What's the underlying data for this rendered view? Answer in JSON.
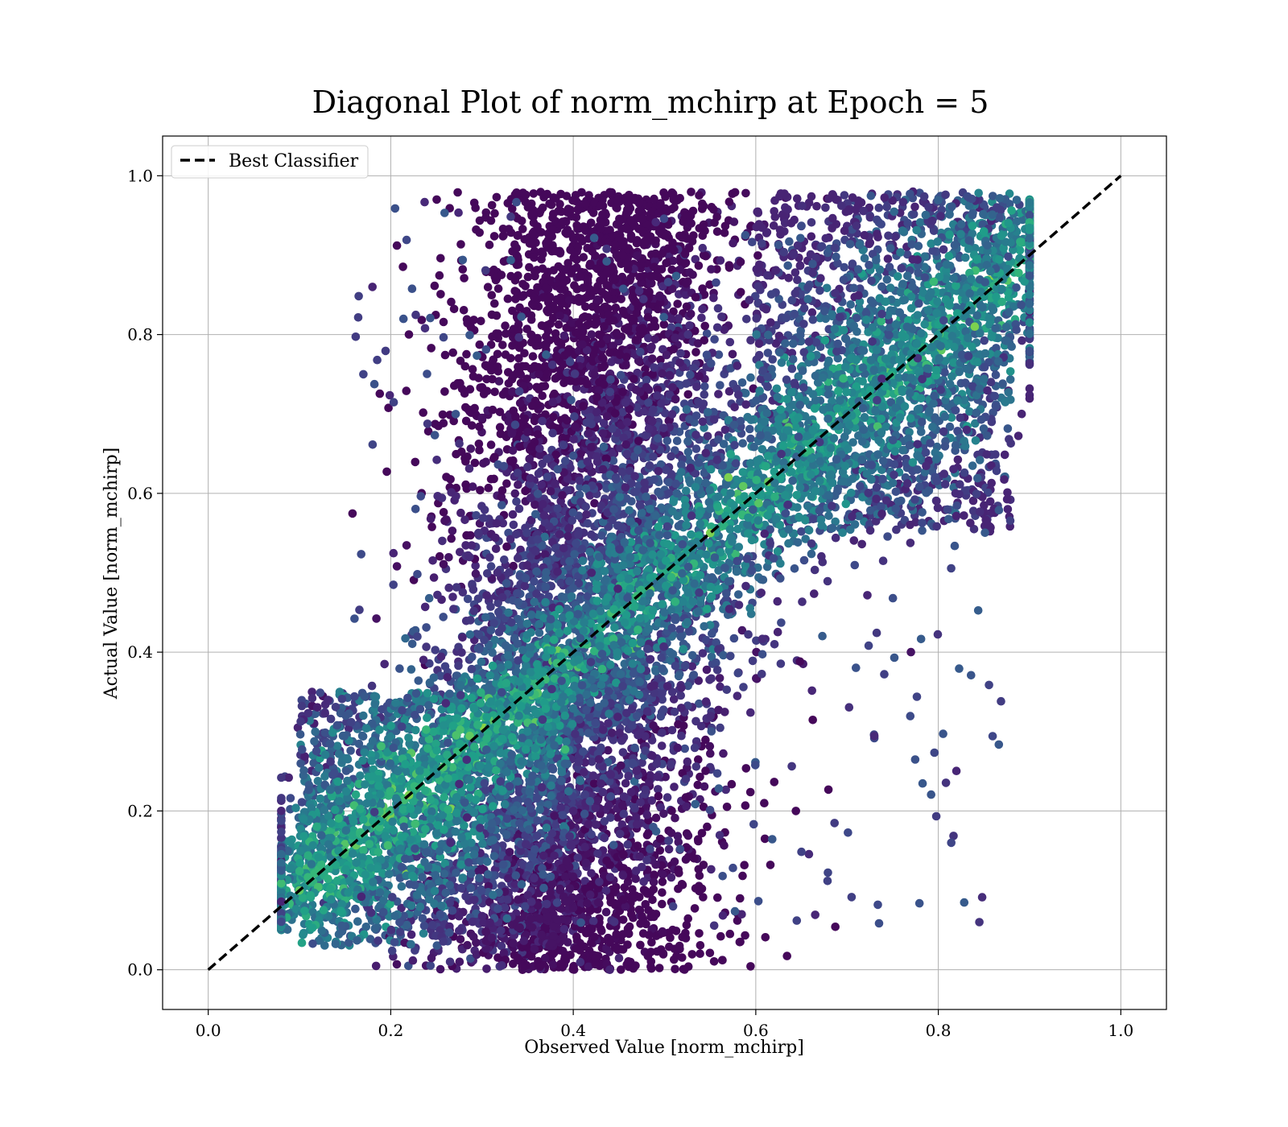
{
  "chart_data": {
    "type": "scatter",
    "title": "Diagonal Plot of norm_mchirp at Epoch = 5",
    "xlabel": "Observed Value [norm_mchirp]",
    "ylabel": "Actual Value [norm_mchirp]",
    "xlim": [
      -0.05,
      1.05
    ],
    "ylim": [
      -0.05,
      1.05
    ],
    "x_ticks": [
      "0.0",
      "0.2",
      "0.4",
      "0.6",
      "0.8",
      "1.0"
    ],
    "y_ticks": [
      "0.0",
      "0.2",
      "0.4",
      "0.6",
      "0.8",
      "1.0"
    ],
    "grid": true,
    "legend": {
      "position": "top-left",
      "entries": [
        "Best Classifier"
      ]
    },
    "colormap": "viridis",
    "colormap_stops": [
      "#440154",
      "#482878",
      "#3e4989",
      "#31688e",
      "#26828e",
      "#1f9e89",
      "#35b779",
      "#6ece58",
      "#b5de2b",
      "#fde725"
    ],
    "reference_line": {
      "name": "Best Classifier",
      "x": [
        0.0,
        1.0
      ],
      "y": [
        0.0,
        1.0
      ],
      "style": "dashed",
      "color": "#000000"
    },
    "series": [
      {
        "name": "",
        "representative_points": [
          {
            "x": 0.1,
            "y": 0.1,
            "c": 0.75
          },
          {
            "x": 0.22,
            "y": 0.22,
            "c": 0.8
          },
          {
            "x": 0.35,
            "y": 0.3,
            "c": 0.45
          },
          {
            "x": 0.4,
            "y": 0.2,
            "c": 0.1
          },
          {
            "x": 0.42,
            "y": 0.5,
            "c": 0.1
          },
          {
            "x": 0.42,
            "y": 0.8,
            "c": 0.05
          },
          {
            "x": 0.5,
            "y": 0.45,
            "c": 0.35
          },
          {
            "x": 0.55,
            "y": 0.55,
            "c": 0.8
          },
          {
            "x": 0.57,
            "y": 0.62,
            "c": 0.8
          },
          {
            "x": 0.7,
            "y": 0.7,
            "c": 0.45
          },
          {
            "x": 0.8,
            "y": 0.8,
            "c": 0.5
          },
          {
            "x": 0.84,
            "y": 0.81,
            "c": 0.8
          },
          {
            "x": 0.85,
            "y": 0.93,
            "c": 0.55
          },
          {
            "x": 0.44,
            "y": 0.0,
            "c": 0.1
          },
          {
            "x": 0.845,
            "y": 0.06,
            "c": 0.15
          },
          {
            "x": 0.77,
            "y": 0.4,
            "c": 0.05
          },
          {
            "x": 0.17,
            "y": 0.75,
            "c": 0.2
          },
          {
            "x": 0.18,
            "y": 0.86,
            "c": 0.1
          }
        ]
      }
    ]
  }
}
